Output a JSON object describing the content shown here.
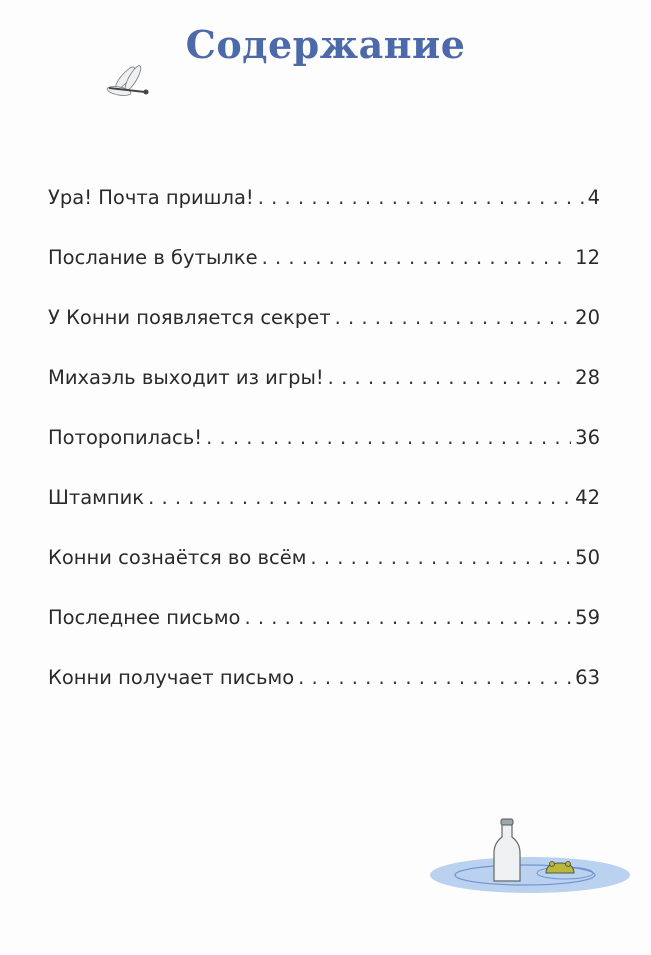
{
  "title": "Содержание",
  "entries": [
    {
      "label": "Ура! Почта пришла!",
      "page": "4"
    },
    {
      "label": "Послание в бутылке",
      "page": "12"
    },
    {
      "label": "У Конни появляется секрет",
      "page": "20"
    },
    {
      "label": "Михаэль выходит из игры!",
      "page": "28"
    },
    {
      "label": "Поторопилась!",
      "page": "36"
    },
    {
      "label": "Штампик",
      "page": "42"
    },
    {
      "label": "Конни сознаётся во всём",
      "page": "50"
    },
    {
      "label": "Последнее письмо",
      "page": "59"
    },
    {
      "label": "Конни получает письмо",
      "page": "63"
    }
  ],
  "colors": {
    "title": "#4c6aa9",
    "water": "#8fb3e0"
  }
}
